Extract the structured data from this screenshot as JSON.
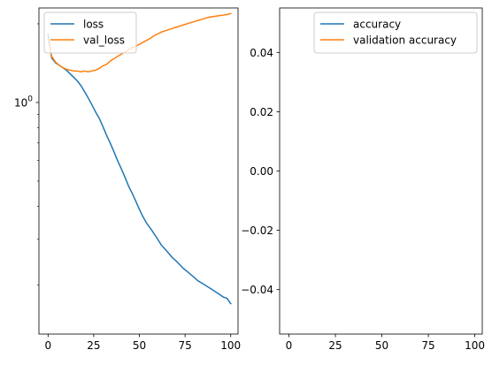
{
  "chart_data": [
    {
      "type": "line",
      "xlabel": "",
      "ylabel": "",
      "xlim": [
        -5,
        104
      ],
      "ylim": [
        0.13,
        2.3
      ],
      "yscale": "log",
      "grid": false,
      "legend": {
        "placement": "top-left"
      },
      "x_ticks": [
        {
          "value": 0,
          "label": "0"
        },
        {
          "value": 25,
          "label": "25"
        },
        {
          "value": 50,
          "label": "50"
        },
        {
          "value": 75,
          "label": "75"
        },
        {
          "value": 100,
          "label": "100"
        }
      ],
      "y_ticks": [
        {
          "value": 1.0,
          "label": "10",
          "exp": "0"
        }
      ],
      "y_minor_ticks": [
        0.2,
        0.3,
        0.4,
        0.5,
        0.6,
        0.7,
        0.8,
        0.9,
        2.0
      ],
      "x": [
        0,
        2,
        4,
        6,
        8,
        10,
        12,
        14,
        16,
        18,
        20,
        22,
        24,
        26,
        28,
        30,
        32,
        34,
        36,
        38,
        40,
        42,
        44,
        46,
        48,
        50,
        52,
        54,
        56,
        58,
        60,
        62,
        64,
        66,
        68,
        70,
        72,
        74,
        76,
        78,
        80,
        82,
        84,
        86,
        88,
        90,
        92,
        94,
        96,
        98,
        100
      ],
      "series": [
        {
          "name": "loss",
          "color": "#1f77b4",
          "values": [
            1.82,
            1.48,
            1.42,
            1.39,
            1.36,
            1.33,
            1.29,
            1.25,
            1.21,
            1.16,
            1.1,
            1.04,
            0.98,
            0.92,
            0.87,
            0.81,
            0.75,
            0.7,
            0.65,
            0.6,
            0.56,
            0.52,
            0.48,
            0.45,
            0.42,
            0.39,
            0.365,
            0.345,
            0.33,
            0.315,
            0.3,
            0.285,
            0.275,
            0.265,
            0.255,
            0.248,
            0.24,
            0.232,
            0.226,
            0.22,
            0.214,
            0.208,
            0.204,
            0.2,
            0.196,
            0.192,
            0.188,
            0.184,
            0.18,
            0.178,
            0.17
          ]
        },
        {
          "name": "val_loss",
          "color": "#ff7f0e",
          "values": [
            1.75,
            1.5,
            1.43,
            1.39,
            1.36,
            1.34,
            1.33,
            1.32,
            1.32,
            1.31,
            1.32,
            1.31,
            1.32,
            1.33,
            1.35,
            1.38,
            1.4,
            1.44,
            1.47,
            1.5,
            1.53,
            1.56,
            1.59,
            1.62,
            1.64,
            1.67,
            1.7,
            1.73,
            1.76,
            1.8,
            1.83,
            1.86,
            1.88,
            1.9,
            1.92,
            1.94,
            1.96,
            1.98,
            2.0,
            2.02,
            2.04,
            2.06,
            2.08,
            2.1,
            2.12,
            2.13,
            2.14,
            2.15,
            2.16,
            2.17,
            2.19
          ]
        }
      ]
    },
    {
      "type": "line",
      "xlabel": "",
      "ylabel": "",
      "xlim": [
        -5,
        104
      ],
      "ylim": [
        -0.055,
        0.055
      ],
      "grid": false,
      "legend": {
        "placement": "top-right"
      },
      "x_ticks": [
        {
          "value": 0,
          "label": "0"
        },
        {
          "value": 25,
          "label": "25"
        },
        {
          "value": 50,
          "label": "50"
        },
        {
          "value": 75,
          "label": "75"
        },
        {
          "value": 100,
          "label": "100"
        }
      ],
      "y_ticks": [
        {
          "value": 0.04,
          "label": "0.04"
        },
        {
          "value": 0.02,
          "label": "0.02"
        },
        {
          "value": 0.0,
          "label": "0.00"
        },
        {
          "value": -0.02,
          "label": "−0.02"
        },
        {
          "value": -0.04,
          "label": "−0.04"
        }
      ],
      "series": [
        {
          "name": "accuracy",
          "color": "#1f77b4",
          "values": []
        },
        {
          "name": "validation accuracy",
          "color": "#ff7f0e",
          "values": []
        }
      ]
    }
  ]
}
